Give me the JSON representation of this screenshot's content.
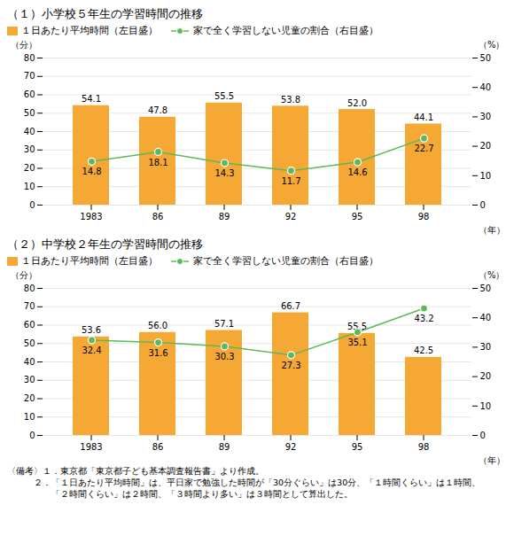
{
  "chart_data": [
    {
      "type": "bar",
      "title": "（１）小学校５年生の学習時間の推移",
      "categories": [
        "1983",
        "86",
        "89",
        "92",
        "95",
        "98"
      ],
      "xlabel": "（年）",
      "ylabel": "（分）",
      "y2label": "（%）",
      "series": [
        {
          "name": "１日あたり平均時間（左目盛）",
          "type": "bar",
          "color": "#F5A833",
          "values": [
            54.1,
            47.8,
            55.5,
            53.8,
            52.0,
            44.1
          ],
          "value_labels": [
            "54.1",
            "47.8",
            "55.5",
            "53.8",
            "52.0",
            "44.1"
          ],
          "data_labels": true
        },
        {
          "name": "家で全く学習しない児童の割合（右目盛）",
          "type": "line",
          "axis": "y2",
          "color": "#5CB85C",
          "marker": "o",
          "line_style": "solid",
          "values": [
            14.8,
            18.1,
            14.3,
            11.7,
            14.6,
            22.7
          ],
          "data_labels": true
        }
      ],
      "ylim": [
        0,
        80
      ],
      "yticks": [
        0,
        10,
        20,
        30,
        40,
        50,
        60,
        70,
        80
      ],
      "y2lim": [
        0,
        50
      ],
      "y2ticks": [
        0,
        10,
        20,
        30,
        40,
        50
      ],
      "grid": true,
      "legend": "upper left"
    },
    {
      "type": "bar",
      "title": "（２）中学校２年生の学習時間の推移",
      "categories": [
        "1983",
        "86",
        "89",
        "92",
        "95",
        "98"
      ],
      "xlabel": "（年）",
      "ylabel": "（分）",
      "y2label": "（%）",
      "series": [
        {
          "name": "１日あたり平均時間（左目盛）",
          "type": "bar",
          "color": "#F5A833",
          "values": [
            53.6,
            56.0,
            57.1,
            66.7,
            55.5,
            42.5
          ],
          "value_labels": [
            "53.6",
            "56.0",
            "57.1",
            "66.7",
            "55.5",
            "42.5"
          ],
          "data_labels": true
        },
        {
          "name": "家で全く学習しない児童の割合（右目盛）",
          "type": "line",
          "axis": "y2",
          "color": "#5CB85C",
          "marker": "o",
          "line_style": "solid",
          "values": [
            32.4,
            31.6,
            30.3,
            27.3,
            35.1,
            43.2
          ],
          "data_labels": true
        }
      ],
      "ylim": [
        0,
        80
      ],
      "yticks": [
        0,
        10,
        20,
        30,
        40,
        50,
        60,
        70,
        80
      ],
      "y2lim": [
        0,
        50
      ],
      "y2ticks": [
        0,
        10,
        20,
        30,
        40,
        50
      ],
      "grid": true,
      "legend": "upper left",
      "annotations": [
        "〈備考〉１．東京都「東京都子ども基本調査報告書」より作成。",
        "　　　２．「１日あたり平均時間」は、平日家で勉強した時間が「30分ぐらい」は30分、「１時間くらい」は１時間、",
        "　　　　　「２時間くらい」は２時間、「３時間より多い」は３時間として算出した。"
      ]
    }
  ]
}
